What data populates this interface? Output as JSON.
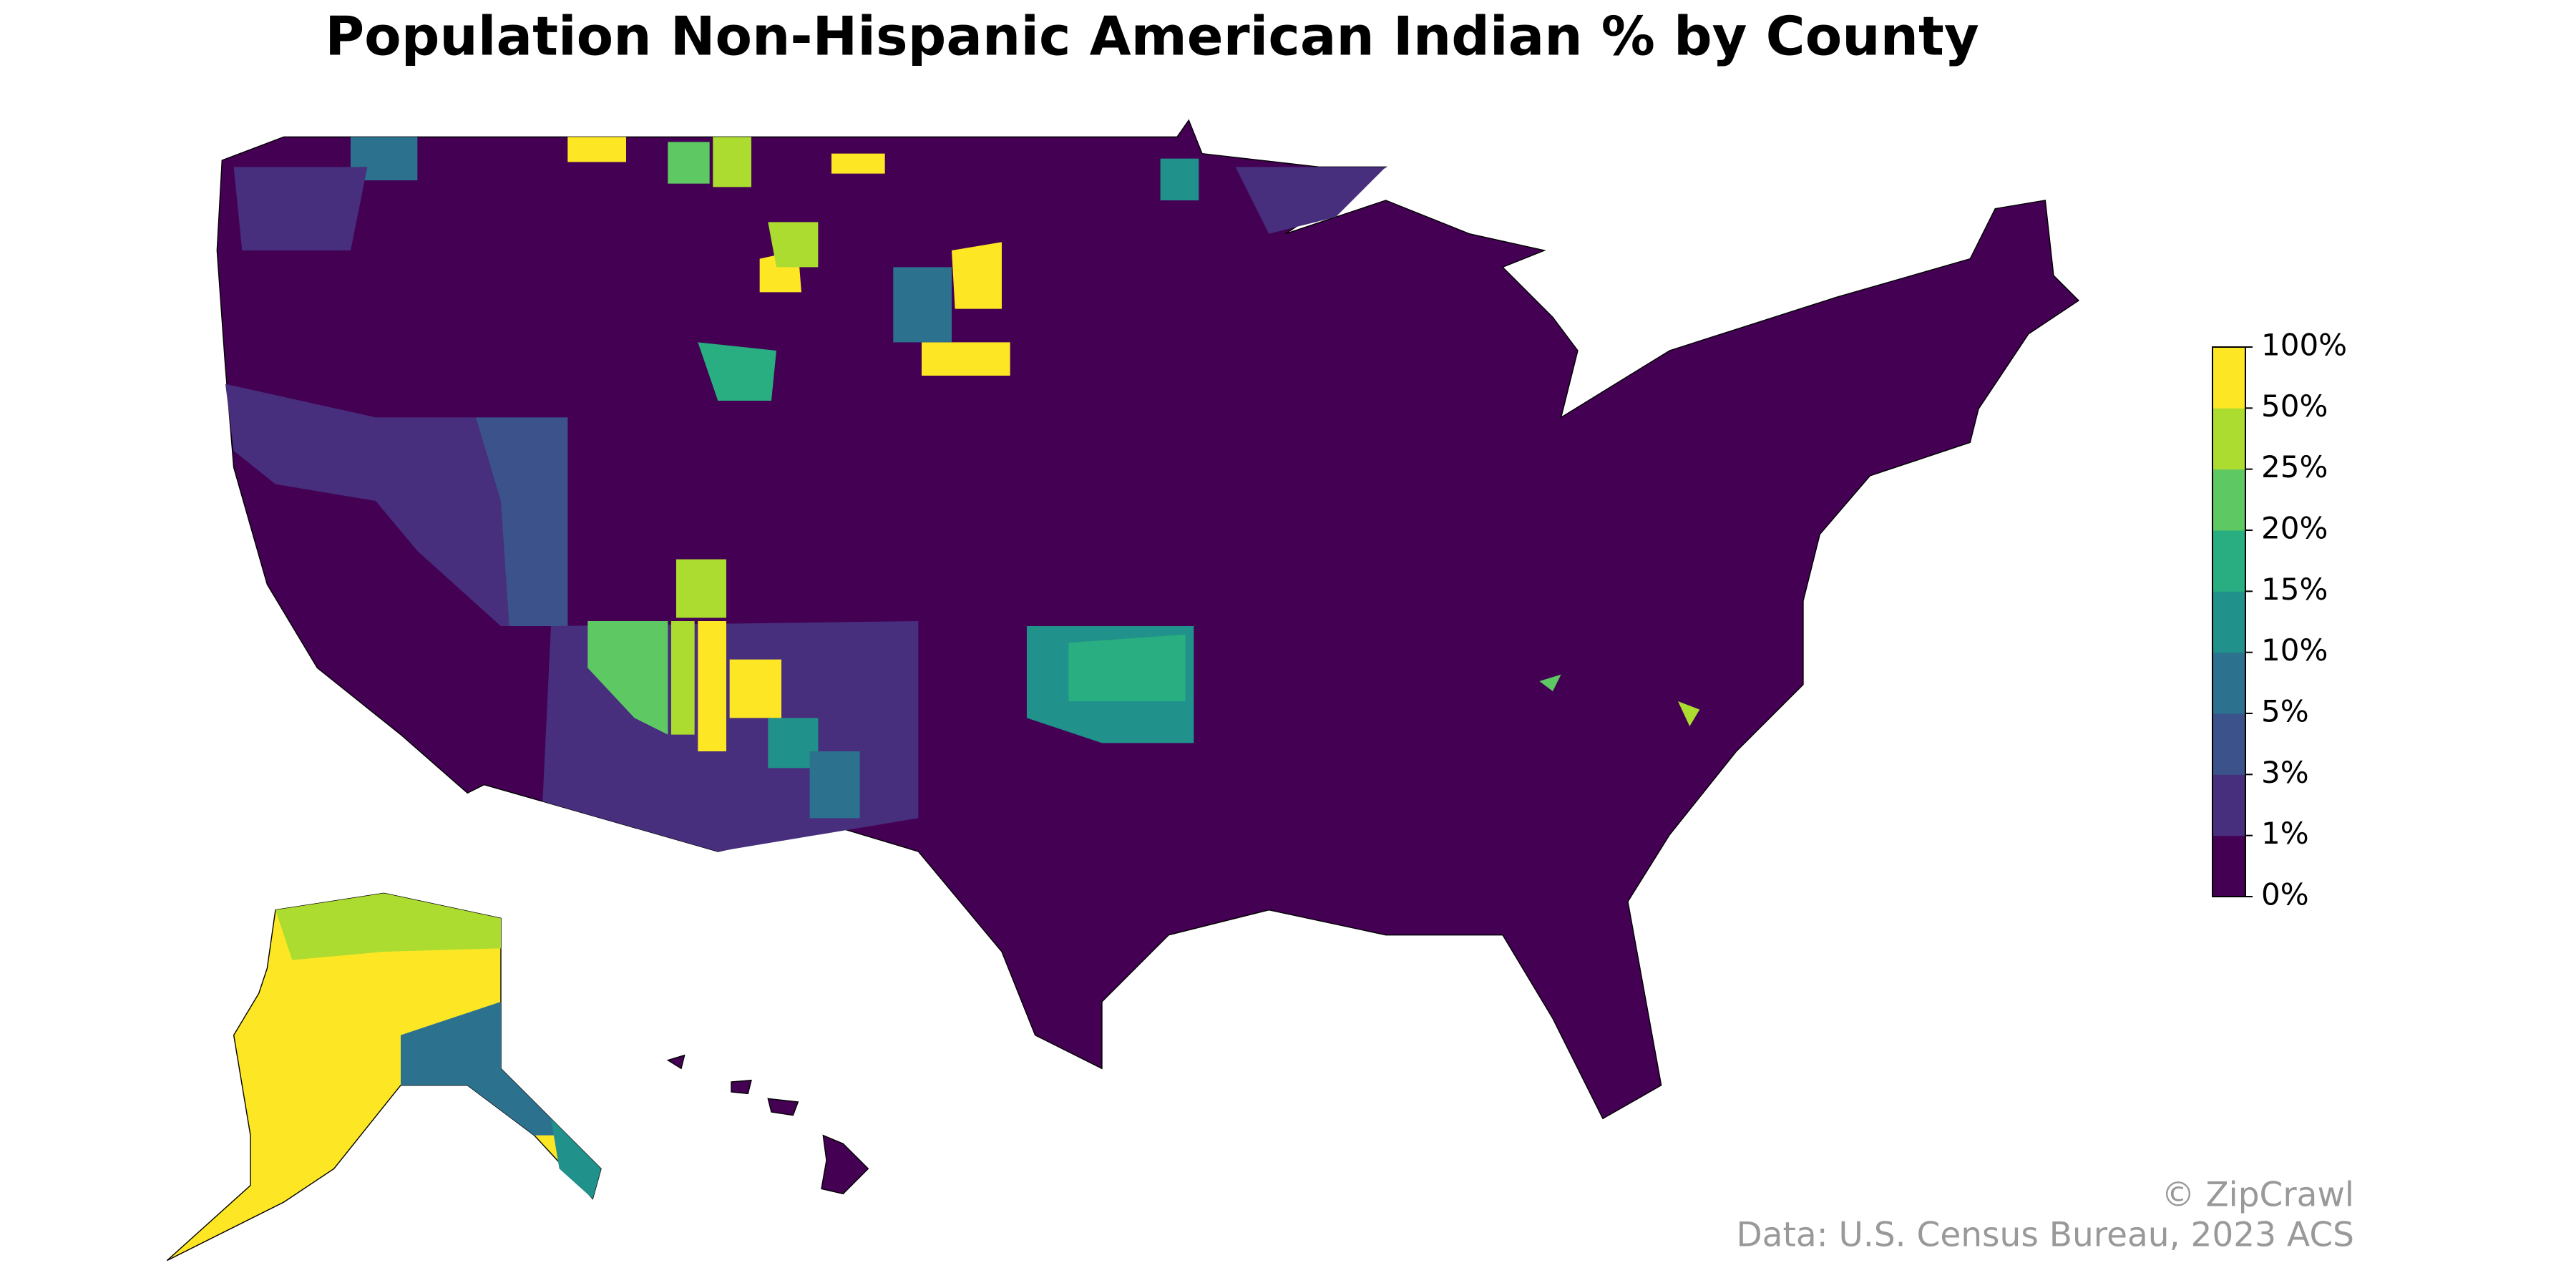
{
  "title": "Population Non-Hispanic American Indian % by County",
  "legend": {
    "colors": [
      "#440154",
      "#472f7d",
      "#3b528b",
      "#2c728e",
      "#21918c",
      "#28ae80",
      "#5ec962",
      "#addc30",
      "#fde725"
    ],
    "ticks": [
      {
        "value": 0,
        "label": "0%"
      },
      {
        "value": 1,
        "label": "1%"
      },
      {
        "value": 3,
        "label": "3%"
      },
      {
        "value": 5,
        "label": "5%"
      },
      {
        "value": 10,
        "label": "10%"
      },
      {
        "value": 15,
        "label": "15%"
      },
      {
        "value": 20,
        "label": "20%"
      },
      {
        "value": 25,
        "label": "25%"
      },
      {
        "value": 50,
        "label": "50%"
      },
      {
        "value": 100,
        "label": "100%"
      }
    ]
  },
  "credits": [
    "© ZipCrawl",
    "Data: U.S. Census Bureau, 2023 ACS"
  ]
}
